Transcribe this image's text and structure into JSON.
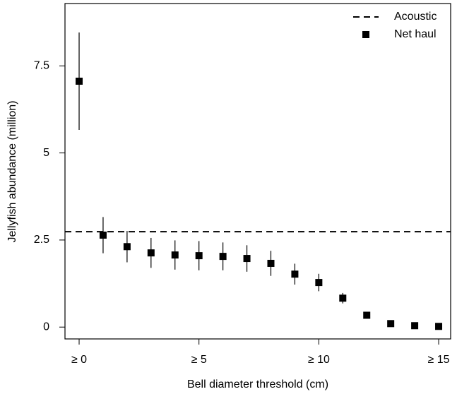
{
  "chart_data": {
    "type": "scatter",
    "x_label": "Bell diameter threshold (cm)",
    "y_label": "Jellyfish abundance (million)",
    "xlim": [
      -0.59,
      15.5
    ],
    "ylim": [
      -0.34,
      9.29
    ],
    "xticks": [
      {
        "value": 0,
        "label": "≥ 0"
      },
      {
        "value": 5,
        "label": "≥ 5"
      },
      {
        "value": 10,
        "label": "≥ 10"
      },
      {
        "value": 15,
        "label": "≥ 15"
      }
    ],
    "yticks": [
      0,
      2.5,
      5,
      7.5
    ],
    "legend": "top-right",
    "series": [
      {
        "name": "Acoustic",
        "kind": "hline",
        "style": "dashed",
        "color": "#000000",
        "value": 2.74
      },
      {
        "name": "Net haul",
        "kind": "points",
        "color": "#000000",
        "x": [
          0,
          1,
          2,
          3,
          4,
          5,
          6,
          7,
          8,
          9,
          10,
          11,
          12,
          13,
          14,
          15
        ],
        "values": [
          7.06,
          2.64,
          2.31,
          2.13,
          2.07,
          2.05,
          2.03,
          1.97,
          1.83,
          1.52,
          1.28,
          0.83,
          0.34,
          0.1,
          0.04,
          0.02
        ],
        "errors": [
          1.4,
          0.52,
          0.45,
          0.43,
          0.42,
          0.42,
          0.4,
          0.38,
          0.36,
          0.3,
          0.25,
          0.15,
          0.04,
          0.03,
          0.02,
          0.01
        ]
      }
    ]
  }
}
